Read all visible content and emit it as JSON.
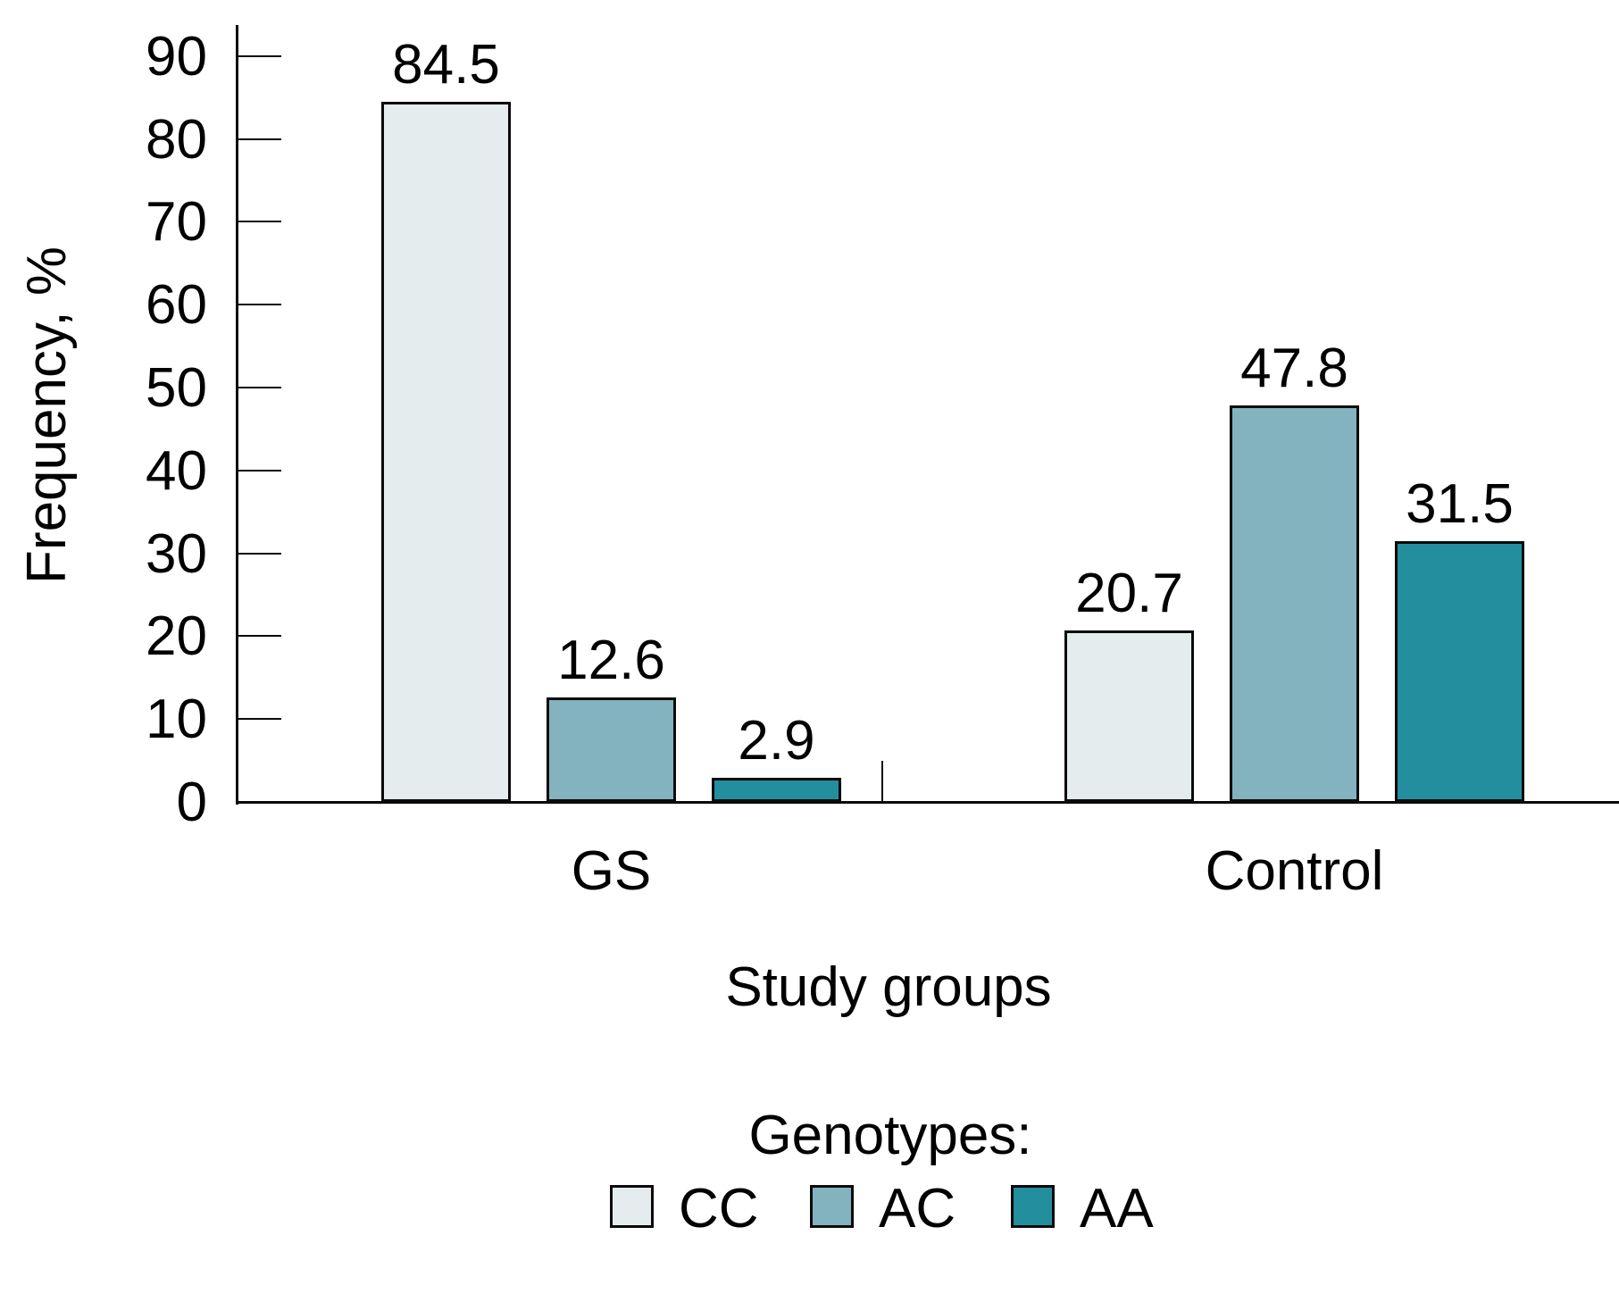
{
  "chart_data": {
    "type": "bar",
    "title": "",
    "xlabel": "Study groups",
    "ylabel": "Frequency, %",
    "ylim": [
      0,
      90
    ],
    "yticks": [
      0,
      10,
      20,
      30,
      40,
      50,
      60,
      70,
      80,
      90
    ],
    "grid": false,
    "categories": [
      "GS",
      "Control"
    ],
    "legend_title": "Genotypes:",
    "legend_position": "bottom",
    "bar_value_labels": true,
    "series": [
      {
        "name": "CC",
        "color": "#e4ecee",
        "values": [
          84.5,
          20.7
        ]
      },
      {
        "name": "AC",
        "color": "#82b3bf",
        "values": [
          12.6,
          47.8
        ]
      },
      {
        "name": "AA",
        "color": "#238e9d",
        "values": [
          2.9,
          31.5
        ]
      }
    ],
    "colors": {
      "axis": "#0a0a0a",
      "text": "#000000",
      "background": "#ffffff"
    }
  }
}
